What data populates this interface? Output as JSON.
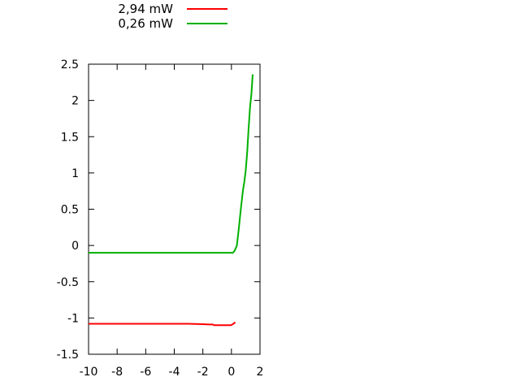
{
  "chart_data": {
    "type": "line",
    "title": "",
    "xlabel": "",
    "ylabel": "",
    "xlim": [
      -10,
      2
    ],
    "ylim": [
      -1.5,
      2.5
    ],
    "xticks": [
      -10,
      -8,
      -6,
      -4,
      -2,
      0,
      2
    ],
    "yticks": [
      2.5,
      2,
      1.5,
      1,
      0.5,
      0,
      -0.5,
      -1,
      -1.5
    ],
    "grid": false,
    "tick_style": "inward-mirrored",
    "legend_position": "above-plot",
    "axis_color": "#000000",
    "background": "#ffffff",
    "series": [
      {
        "name": "2,94 mW",
        "color": "#ff0000",
        "points": [
          [
            -10,
            -1.08
          ],
          [
            -9,
            -1.08
          ],
          [
            -8,
            -1.08
          ],
          [
            -7,
            -1.08
          ],
          [
            -6,
            -1.08
          ],
          [
            -5,
            -1.08
          ],
          [
            -4,
            -1.08
          ],
          [
            -3,
            -1.08
          ],
          [
            -2,
            -1.085
          ],
          [
            -1.5,
            -1.09
          ],
          [
            -1.3,
            -1.09
          ],
          [
            -1.2,
            -1.1
          ],
          [
            -1.0,
            -1.1
          ],
          [
            -0.8,
            -1.1
          ],
          [
            -0.6,
            -1.1
          ],
          [
            -0.4,
            -1.1
          ],
          [
            -0.2,
            -1.1
          ],
          [
            -0.05,
            -1.1
          ],
          [
            0,
            -1.095
          ],
          [
            0.1,
            -1.085
          ],
          [
            0.2,
            -1.07
          ],
          [
            0.27,
            -1.06
          ]
        ]
      },
      {
        "name": "0,26 mW",
        "color": "#00b000",
        "points": [
          [
            -10,
            -0.1
          ],
          [
            -9,
            -0.1
          ],
          [
            -8,
            -0.1
          ],
          [
            -7,
            -0.1
          ],
          [
            -6,
            -0.1
          ],
          [
            -5,
            -0.1
          ],
          [
            -4,
            -0.1
          ],
          [
            -3,
            -0.1
          ],
          [
            -2,
            -0.1
          ],
          [
            -1,
            -0.1
          ],
          [
            -0.5,
            -0.1
          ],
          [
            0,
            -0.1
          ],
          [
            0.1,
            -0.1
          ],
          [
            0.2,
            -0.08
          ],
          [
            0.3,
            -0.04
          ],
          [
            0.38,
            0.0
          ],
          [
            0.5,
            0.2
          ],
          [
            0.66,
            0.5
          ],
          [
            0.8,
            0.75
          ],
          [
            0.9,
            0.88
          ],
          [
            1.0,
            1.03
          ],
          [
            1.1,
            1.28
          ],
          [
            1.2,
            1.6
          ],
          [
            1.3,
            1.9
          ],
          [
            1.4,
            2.1
          ],
          [
            1.49,
            2.36
          ]
        ]
      }
    ]
  }
}
